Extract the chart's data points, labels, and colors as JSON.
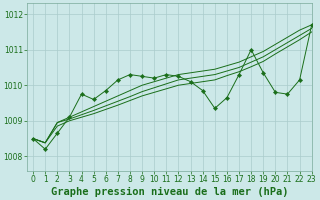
{
  "title": "Graphe pression niveau de la mer (hPa)",
  "background_color": "#cce8e8",
  "grid_color": "#aacccc",
  "line_color": "#1a6e1a",
  "xlim": [
    -0.5,
    23
  ],
  "ylim": [
    1007.6,
    1012.3
  ],
  "yticks": [
    1008,
    1009,
    1010,
    1011,
    1012
  ],
  "xticks": [
    0,
    1,
    2,
    3,
    4,
    5,
    6,
    7,
    8,
    9,
    10,
    11,
    12,
    13,
    14,
    15,
    16,
    17,
    18,
    19,
    20,
    21,
    22,
    23
  ],
  "tick_fontsize": 5.5,
  "xlabel_fontsize": 7.5,
  "series_smooth_1": [
    1008.5,
    1008.38,
    1008.95,
    1009.1,
    1009.25,
    1009.4,
    1009.55,
    1009.7,
    1009.85,
    1010.0,
    1010.1,
    1010.2,
    1010.3,
    1010.35,
    1010.4,
    1010.45,
    1010.55,
    1010.65,
    1010.8,
    1010.95,
    1011.15,
    1011.35,
    1011.55,
    1011.7
  ],
  "series_smooth_2": [
    1008.5,
    1008.38,
    1008.95,
    1009.05,
    1009.17,
    1009.29,
    1009.42,
    1009.55,
    1009.68,
    1009.82,
    1009.93,
    1010.04,
    1010.15,
    1010.2,
    1010.25,
    1010.3,
    1010.4,
    1010.5,
    1010.65,
    1010.8,
    1011.0,
    1011.2,
    1011.4,
    1011.6
  ],
  "series_smooth_3": [
    1008.5,
    1008.38,
    1008.85,
    1009.0,
    1009.1,
    1009.2,
    1009.32,
    1009.44,
    1009.57,
    1009.7,
    1009.8,
    1009.9,
    1010.0,
    1010.05,
    1010.1,
    1010.15,
    1010.27,
    1010.38,
    1010.52,
    1010.67,
    1010.88,
    1011.08,
    1011.28,
    1011.5
  ],
  "series_wiggly": [
    1008.5,
    1008.2,
    1008.65,
    1009.1,
    1009.75,
    1009.6,
    1009.85,
    1010.15,
    1010.3,
    1010.25,
    1010.2,
    1010.3,
    1010.25,
    1010.1,
    1009.85,
    1009.35,
    1009.65,
    1010.3,
    1011.0,
    1010.35,
    1009.8,
    1009.75,
    1010.15,
    1011.7
  ]
}
